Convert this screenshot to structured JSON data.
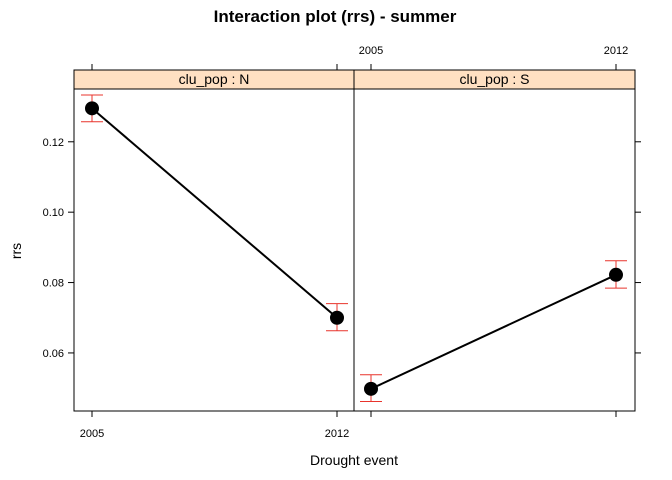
{
  "chart_data": {
    "type": "line",
    "title": "Interaction plot (rrs) - summer",
    "xlabel": "Drought event",
    "ylabel": "rrs",
    "categories": [
      "2005",
      "2012"
    ],
    "ylim": [
      0.0435,
      0.135
    ],
    "yticks": [
      0.06,
      0.08,
      0.1,
      0.12
    ],
    "ytick_labels": [
      "0.06",
      "0.08",
      "0.10",
      "0.12"
    ],
    "grid": false,
    "colors": {
      "strip_fill": "#ffe0c2",
      "error_bar": "#e8342c",
      "line": "#000000",
      "point": "#000000"
    },
    "panels": [
      {
        "strip": "clu_pop : N",
        "values": [
          0.1295,
          0.07
        ],
        "err_low": [
          0.1257,
          0.0663
        ],
        "err_high": [
          0.1333,
          0.074
        ]
      },
      {
        "strip": "clu_pop : S",
        "values": [
          0.0498,
          0.0822
        ],
        "err_low": [
          0.0462,
          0.0784
        ],
        "err_high": [
          0.0538,
          0.0862
        ]
      }
    ]
  }
}
